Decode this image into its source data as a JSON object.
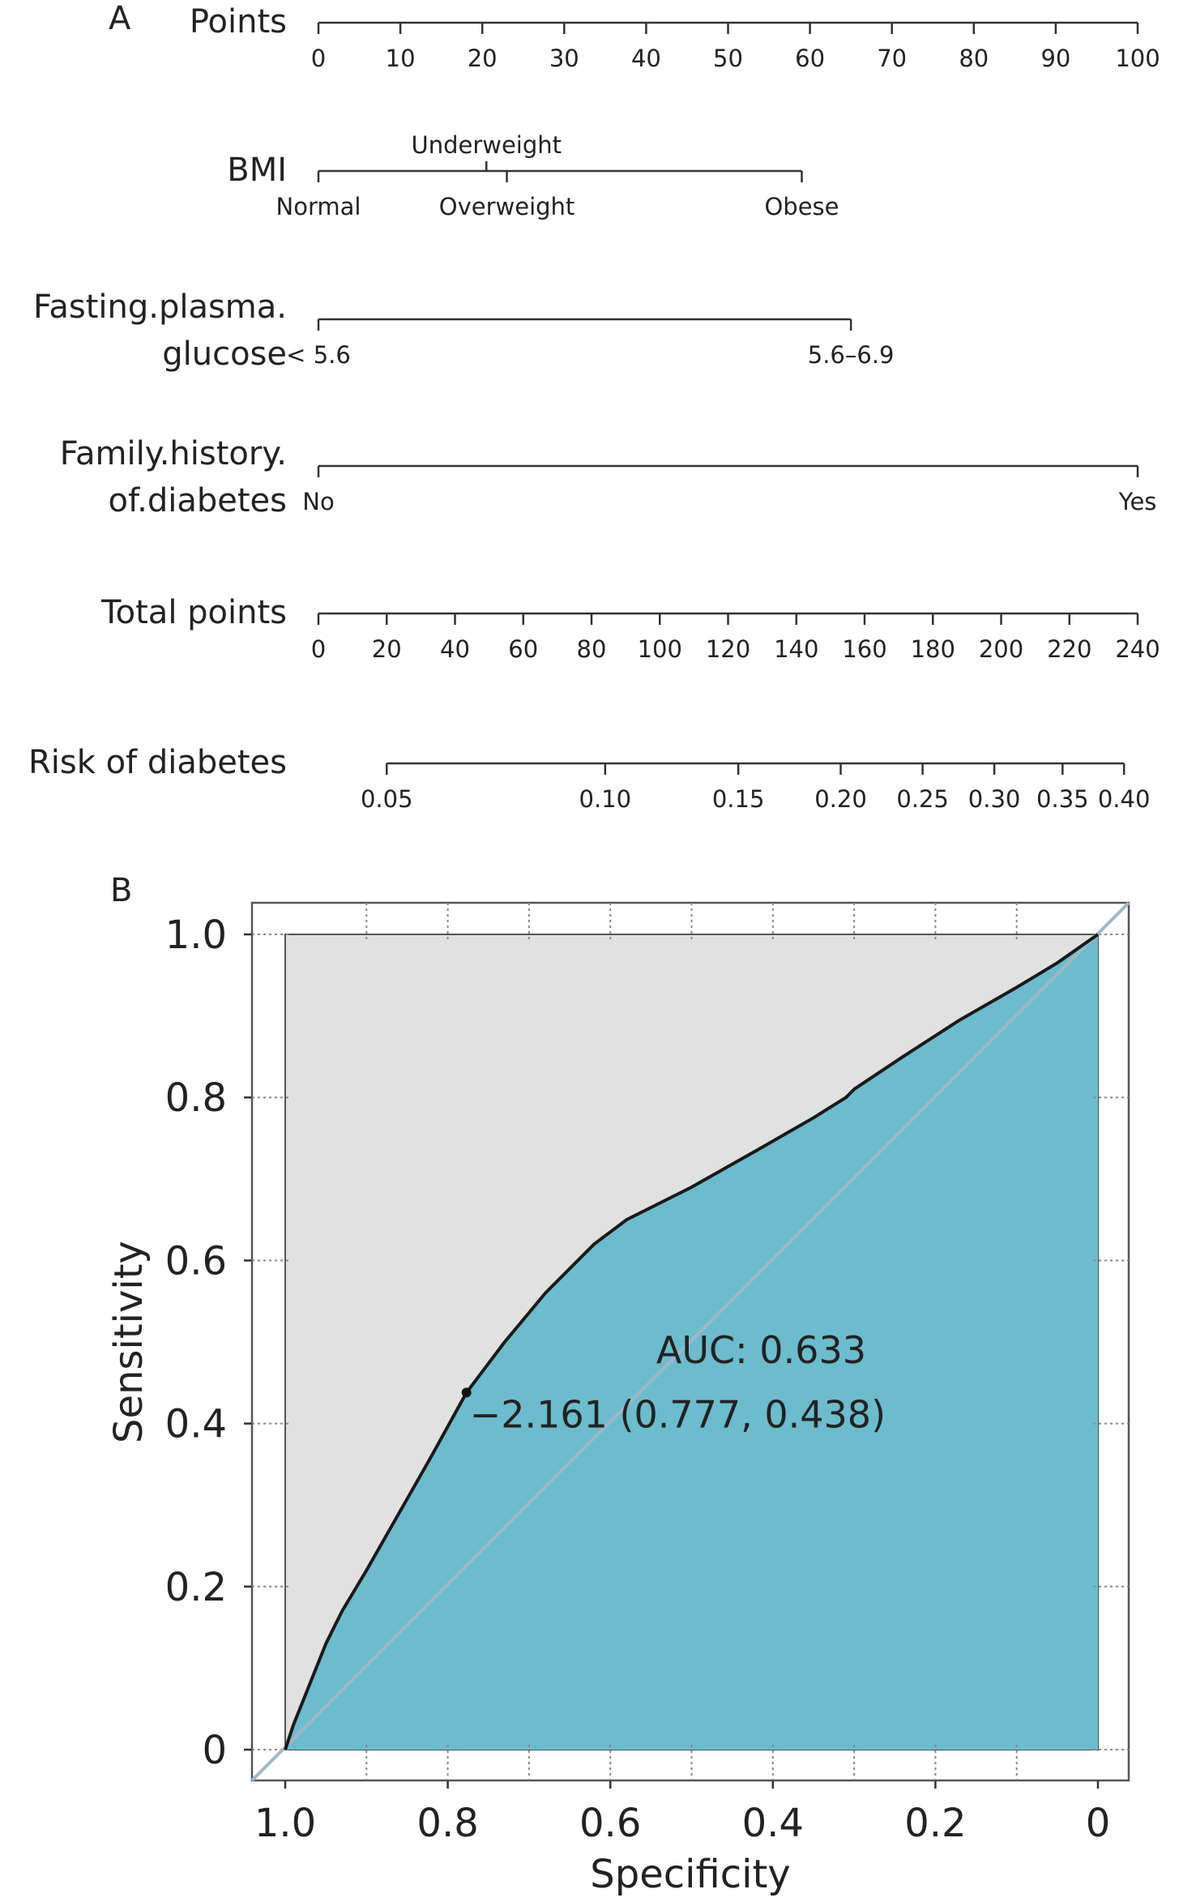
{
  "panel_labels": {
    "a": "A",
    "b": "B"
  },
  "chart_data": [
    {
      "type": "nomogram",
      "rows": [
        {
          "label_lines": [
            "Points"
          ],
          "kind": "continuous",
          "domain": [
            0,
            100
          ],
          "ticks": [
            0,
            10,
            20,
            30,
            40,
            50,
            60,
            70,
            80,
            90,
            100
          ],
          "tick_labels": [
            "0",
            "10",
            "20",
            "30",
            "40",
            "50",
            "60",
            "70",
            "80",
            "90",
            "100"
          ]
        },
        {
          "label_lines": [
            "BMI"
          ],
          "kind": "categorical",
          "categories": [
            {
              "label": "Normal",
              "points": 0,
              "label_pos": "below"
            },
            {
              "label": "Underweight",
              "points": 20.5,
              "label_pos": "above"
            },
            {
              "label": "Overweight",
              "points": 23,
              "label_pos": "below"
            },
            {
              "label": "Obese",
              "points": 59,
              "label_pos": "below"
            }
          ]
        },
        {
          "label_lines": [
            "Fasting.plasma.",
            "glucose"
          ],
          "kind": "categorical",
          "categories": [
            {
              "label": "< 5.6",
              "points": 0,
              "label_pos": "below"
            },
            {
              "label": "5.6–6.9",
              "points": 65,
              "label_pos": "below"
            }
          ]
        },
        {
          "label_lines": [
            "Family.history.",
            "of.diabetes"
          ],
          "kind": "categorical",
          "categories": [
            {
              "label": "No",
              "points": 0,
              "label_pos": "below"
            },
            {
              "label": "Yes",
              "points": 100,
              "label_pos": "below"
            }
          ]
        },
        {
          "label_lines": [
            "Total points"
          ],
          "kind": "continuous",
          "domain": [
            0,
            240
          ],
          "ticks": [
            0,
            20,
            40,
            60,
            80,
            100,
            120,
            140,
            160,
            180,
            200,
            220,
            240
          ],
          "tick_labels": [
            "0",
            "20",
            "40",
            "60",
            "80",
            "100",
            "120",
            "140",
            "160",
            "180",
            "200",
            "220",
            "240"
          ]
        },
        {
          "label_lines": [
            "Risk of diabetes"
          ],
          "kind": "risk",
          "ticks_total_points": [
            20,
            84,
            123,
            153,
            177,
            198,
            218,
            236
          ],
          "tick_labels": [
            "0.05",
            "0.10",
            "0.15",
            "0.20",
            "0.25",
            "0.30",
            "0.35",
            "0.40"
          ]
        }
      ]
    },
    {
      "type": "line",
      "subtype": "roc",
      "xlabel": "Specificity",
      "ylabel": "Sensitivity",
      "xlim": [
        1.0,
        0
      ],
      "ylim": [
        0,
        1.0
      ],
      "x_reversed": true,
      "x_ticks": [
        1.0,
        0.8,
        0.6,
        0.4,
        0.2,
        0
      ],
      "x_tick_labels": [
        "1.0",
        "0.8",
        "0.6",
        "0.4",
        "0.2",
        "0"
      ],
      "y_ticks": [
        0,
        0.2,
        0.4,
        0.6,
        0.8,
        1.0
      ],
      "y_tick_labels": [
        "0",
        "0.2",
        "0.4",
        "0.6",
        "0.8",
        "1.0"
      ],
      "grid": true,
      "series": [
        {
          "specificity": [
            1.0,
            0.99,
            0.97,
            0.95,
            0.93,
            0.9,
            0.86,
            0.82,
            0.777,
            0.73,
            0.68,
            0.62,
            0.58,
            0.54,
            0.5,
            0.42,
            0.35,
            0.31,
            0.3,
            0.24,
            0.17,
            0.1,
            0.05,
            0.0
          ],
          "sensitivity": [
            0.0,
            0.03,
            0.08,
            0.13,
            0.17,
            0.22,
            0.29,
            0.36,
            0.438,
            0.5,
            0.56,
            0.62,
            0.65,
            0.67,
            0.69,
            0.735,
            0.775,
            0.8,
            0.81,
            0.85,
            0.895,
            0.935,
            0.965,
            1.0
          ]
        }
      ],
      "auc_text": "AUC: 0.633",
      "threshold_point": {
        "specificity": 0.777,
        "sensitivity": 0.438,
        "label": "−2.161 (0.777, 0.438)"
      },
      "colors": {
        "auc_fill": "#6cbccd",
        "upper_fill": "#e1e1e1",
        "curve": "#1a1a1a",
        "diagonal": "#9fb8c8",
        "frame": "#555555"
      }
    }
  ]
}
